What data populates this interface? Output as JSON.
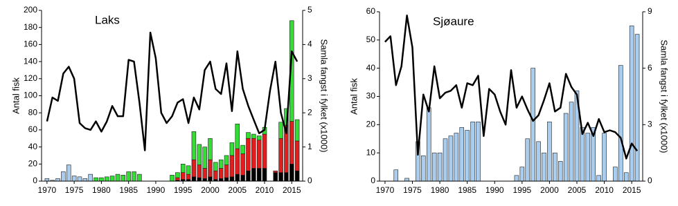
{
  "chart_data": [
    {
      "type": "bar",
      "title": "Laks",
      "y_label": "Antal fisk",
      "y2_label": "Samla fangst i fylket (x1000)",
      "stacked": true,
      "x": [
        1970,
        1971,
        1972,
        1973,
        1974,
        1975,
        1976,
        1977,
        1978,
        1979,
        1980,
        1981,
        1982,
        1983,
        1984,
        1985,
        1986,
        1987,
        1988,
        1989,
        1990,
        1991,
        1992,
        1993,
        1994,
        1995,
        1996,
        1997,
        1998,
        1999,
        2000,
        2001,
        2002,
        2003,
        2004,
        2005,
        2006,
        2007,
        2008,
        2009,
        2010,
        2011,
        2012,
        2013,
        2014,
        2015,
        2016
      ],
      "xlim": [
        1969,
        2017
      ],
      "xticks": [
        1970,
        1975,
        1980,
        1985,
        1990,
        1995,
        2000,
        2005,
        2010,
        2015
      ],
      "ylim": [
        0,
        200
      ],
      "yticks": [
        0,
        20,
        40,
        60,
        80,
        100,
        120,
        140,
        160,
        180,
        200
      ],
      "y2lim": [
        0,
        5
      ],
      "y2ticks": [
        0,
        1,
        2,
        3,
        4,
        5
      ],
      "series": [
        {
          "kind": "bar",
          "color": "#a9cdef",
          "values": [
            3,
            1,
            3,
            11,
            19,
            6,
            5,
            3,
            8,
            null,
            null,
            null,
            null,
            null,
            null,
            null,
            null,
            null,
            null,
            null,
            null,
            null,
            null,
            null,
            null,
            null,
            null,
            null,
            null,
            null,
            null,
            null,
            null,
            null,
            null,
            null,
            null,
            null,
            null,
            null,
            null,
            null,
            null,
            null,
            null,
            null,
            null
          ]
        },
        {
          "kind": "bar",
          "color": "#000000",
          "values": [
            null,
            null,
            null,
            null,
            null,
            null,
            null,
            null,
            null,
            null,
            null,
            null,
            null,
            null,
            null,
            null,
            null,
            null,
            null,
            null,
            null,
            null,
            null,
            0,
            1,
            2,
            2,
            5,
            4,
            3,
            5,
            2,
            3,
            4,
            5,
            8,
            7,
            12,
            15,
            15,
            15,
            null,
            10,
            10,
            10,
            20,
            12
          ]
        },
        {
          "kind": "bar",
          "color": "#e01e1e",
          "values": [
            null,
            null,
            null,
            null,
            null,
            null,
            null,
            null,
            null,
            null,
            null,
            null,
            null,
            null,
            null,
            null,
            null,
            null,
            null,
            null,
            null,
            null,
            null,
            0,
            3,
            8,
            6,
            20,
            15,
            12,
            20,
            10,
            12,
            15,
            25,
            30,
            25,
            38,
            35,
            33,
            40,
            null,
            2,
            40,
            55,
            50,
            35
          ]
        },
        {
          "kind": "bar",
          "color": "#33dd33",
          "values": [
            null,
            null,
            null,
            null,
            null,
            null,
            null,
            null,
            null,
            4,
            4,
            5,
            6,
            8,
            7,
            11,
            11,
            8,
            null,
            null,
            null,
            null,
            null,
            7,
            6,
            10,
            10,
            33,
            24,
            25,
            25,
            10,
            10,
            11,
            15,
            29,
            10,
            7,
            5,
            5,
            8,
            null,
            0,
            19,
            20,
            118,
            25
          ]
        },
        {
          "kind": "line",
          "axis": "y2",
          "color": "#000000",
          "values": [
            1.75,
            2.45,
            2.35,
            3.15,
            3.35,
            3.0,
            1.7,
            1.55,
            1.5,
            1.75,
            1.45,
            1.75,
            2.2,
            1.9,
            1.9,
            3.55,
            3.5,
            2.3,
            0.9,
            4.35,
            3.6,
            2.0,
            1.7,
            1.9,
            2.3,
            2.4,
            1.7,
            2.45,
            2.1,
            3.25,
            3.5,
            2.7,
            2.55,
            3.45,
            2.05,
            3.8,
            2.7,
            2.2,
            1.8,
            1.4,
            1.5,
            2.65,
            3.5,
            2.0,
            1.4,
            3.8,
            3.5
          ]
        }
      ]
    },
    {
      "type": "bar",
      "title": "Sjøaure",
      "y_label": "Antal fisk",
      "y2_label": "Samla fangst i fylket (x1000)",
      "stacked": true,
      "x": [
        1970,
        1971,
        1972,
        1973,
        1974,
        1975,
        1976,
        1977,
        1978,
        1979,
        1980,
        1981,
        1982,
        1983,
        1984,
        1985,
        1986,
        1987,
        1988,
        1989,
        1990,
        1991,
        1992,
        1993,
        1994,
        1995,
        1996,
        1997,
        1998,
        1999,
        2000,
        2001,
        2002,
        2003,
        2004,
        2005,
        2006,
        2007,
        2008,
        2009,
        2010,
        2011,
        2012,
        2013,
        2014,
        2015,
        2016
      ],
      "xlim": [
        1969,
        2017
      ],
      "xticks": [
        1970,
        1975,
        1980,
        1985,
        1990,
        1995,
        2000,
        2005,
        2010,
        2015
      ],
      "ylim": [
        0,
        60
      ],
      "yticks": [
        0,
        10,
        20,
        30,
        40,
        50,
        60
      ],
      "y2lim": [
        0,
        9
      ],
      "y2ticks": [
        0,
        3,
        6,
        9
      ],
      "series": [
        {
          "kind": "bar",
          "color": "#a9cdef",
          "values": [
            0,
            0,
            4,
            0,
            1,
            0,
            14,
            9,
            26,
            10,
            10,
            15,
            16,
            17,
            19,
            18,
            21,
            21,
            0,
            0,
            0,
            0,
            0,
            0,
            2,
            5,
            15,
            40,
            14,
            10,
            21,
            10,
            7,
            24,
            28,
            32,
            19,
            17,
            19,
            2,
            17,
            0,
            5,
            41,
            3,
            55,
            52
          ]
        },
        {
          "kind": "line",
          "axis": "y2",
          "color": "#000000",
          "values": [
            7.4,
            7.7,
            5.1,
            6.1,
            8.8,
            7.1,
            1.4,
            4.6,
            3.7,
            6.1,
            4.4,
            4.7,
            4.8,
            5.1,
            3.9,
            5.2,
            5.1,
            5.6,
            2.4,
            4.9,
            4.6,
            3.7,
            3.0,
            5.9,
            3.9,
            4.5,
            3.8,
            3.2,
            3.5,
            4.3,
            5.2,
            3.7,
            3.9,
            5.7,
            5.0,
            4.6,
            2.5,
            3.1,
            2.4,
            3.3,
            2.6,
            2.7,
            2.6,
            2.3,
            1.2,
            2.0,
            1.6
          ]
        }
      ]
    }
  ]
}
